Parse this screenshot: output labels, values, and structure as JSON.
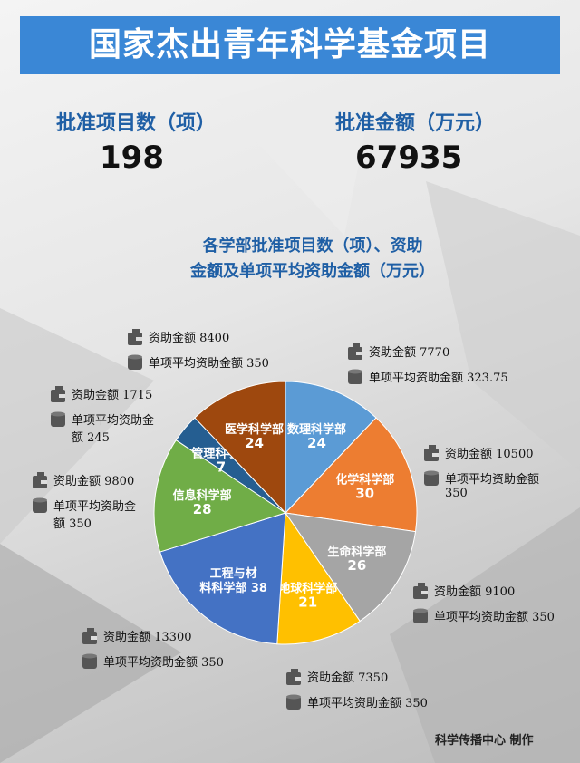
{
  "title": "国家杰出青年科学基金项目",
  "stats": {
    "projects_label": "批准项目数（项）",
    "projects_value": "198",
    "amount_label": "批准金额（万元）",
    "amount_value": "67935"
  },
  "subtitle": {
    "line1": "各学部批准项目数（项）、资助",
    "line2": "金额及单项平均资助金额（万元）"
  },
  "footer": "科学传播中心 制作",
  "chart_data": {
    "type": "pie",
    "title": "各学部批准项目数（项）、资助金额及单项平均资助金额（万元）",
    "start": "12 o'clock",
    "direction": "clockwise",
    "slices": [
      {
        "label": "数理科学部",
        "value": 24,
        "color": "#5b9bd5",
        "funding_label": "资助金额",
        "funding": "7770",
        "avg_label": "单项平均资助金额",
        "avg": "323.75"
      },
      {
        "label": "化学科学部",
        "value": 30,
        "color": "#ed7d31",
        "funding_label": "资助金额",
        "funding": "10500",
        "avg_label": "单项平均资助金额",
        "avg": "350"
      },
      {
        "label": "生命科学部",
        "value": 26,
        "color": "#a5a5a5",
        "funding_label": "资助金额",
        "funding": "9100",
        "avg_label": "单项平均资助金额",
        "avg": "350"
      },
      {
        "label": "地球科学部",
        "value": 21,
        "color": "#ffc000",
        "funding_label": "资助金额",
        "funding": "7350",
        "avg_label": "单项平均资助金额",
        "avg": "350"
      },
      {
        "label": "工程与材料科学部",
        "value": 38,
        "color": "#4472c4",
        "funding_label": "资助金额",
        "funding": "13300",
        "avg_label": "单项平均资助金额",
        "avg": "350"
      },
      {
        "label": "信息科学部",
        "value": 28,
        "color": "#70ad47",
        "funding_label": "资助金额",
        "funding": "9800",
        "avg_label": "单项平均资助金额",
        "avg": "350"
      },
      {
        "label": "管理科学部",
        "value": 7,
        "color": "#255e91",
        "funding_label": "资助金额",
        "funding": "1715",
        "avg_label": "单项平均资助金额",
        "avg": "245"
      },
      {
        "label": "医学科学部",
        "value": 24,
        "color": "#9e480e",
        "funding_label": "资助金额",
        "funding": "8400",
        "avg_label": "单项平均资助金额",
        "avg": "350"
      }
    ]
  }
}
